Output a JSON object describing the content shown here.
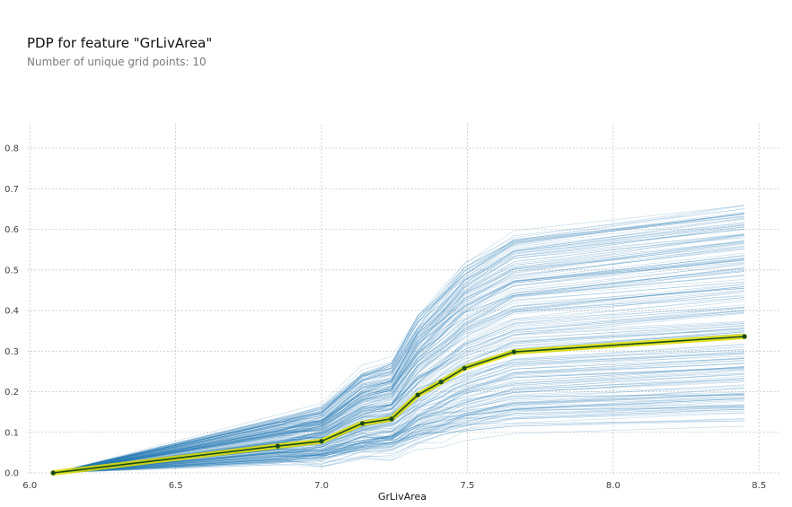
{
  "title": "PDP for feature \"GrLivArea\"",
  "subtitle": "Number of unique grid points: 10",
  "chart_data": {
    "type": "line",
    "title": "PDP for feature \"GrLivArea\"",
    "subtitle": "Number of unique grid points: 10",
    "xlabel": "GrLivArea",
    "ylabel": "",
    "xlim": [
      5.99,
      8.57
    ],
    "ylim": [
      0.0,
      0.86
    ],
    "xticks": [
      6.0,
      6.5,
      7.0,
      7.5,
      8.0,
      8.5
    ],
    "xtick_labels": [
      "6.0",
      "6.5",
      "7.0",
      "7.5",
      "8.0",
      "8.5"
    ],
    "yticks": [
      0.0,
      0.1,
      0.2,
      0.3,
      0.4,
      0.5,
      0.6,
      0.7,
      0.8
    ],
    "ytick_labels": [
      "0.0",
      "0.1",
      "0.2",
      "0.3",
      "0.4",
      "0.5",
      "0.6",
      "0.7",
      "0.8"
    ],
    "grid": true,
    "ice_lines_color": "#1f77b4",
    "pdp_line_color": "#1a4a1a",
    "pdp_band_color": "#dddd00",
    "pdp_marker_color": "#1a4a1a",
    "series": [
      {
        "x": [
          6.08,
          6.85,
          7.0,
          7.14,
          7.24,
          7.33,
          7.41,
          7.49,
          7.66,
          8.45
        ],
        "values": [
          0.0,
          0.066,
          0.078,
          0.122,
          0.133,
          0.192,
          0.224,
          0.258,
          0.298,
          0.336
        ]
      }
    ]
  }
}
